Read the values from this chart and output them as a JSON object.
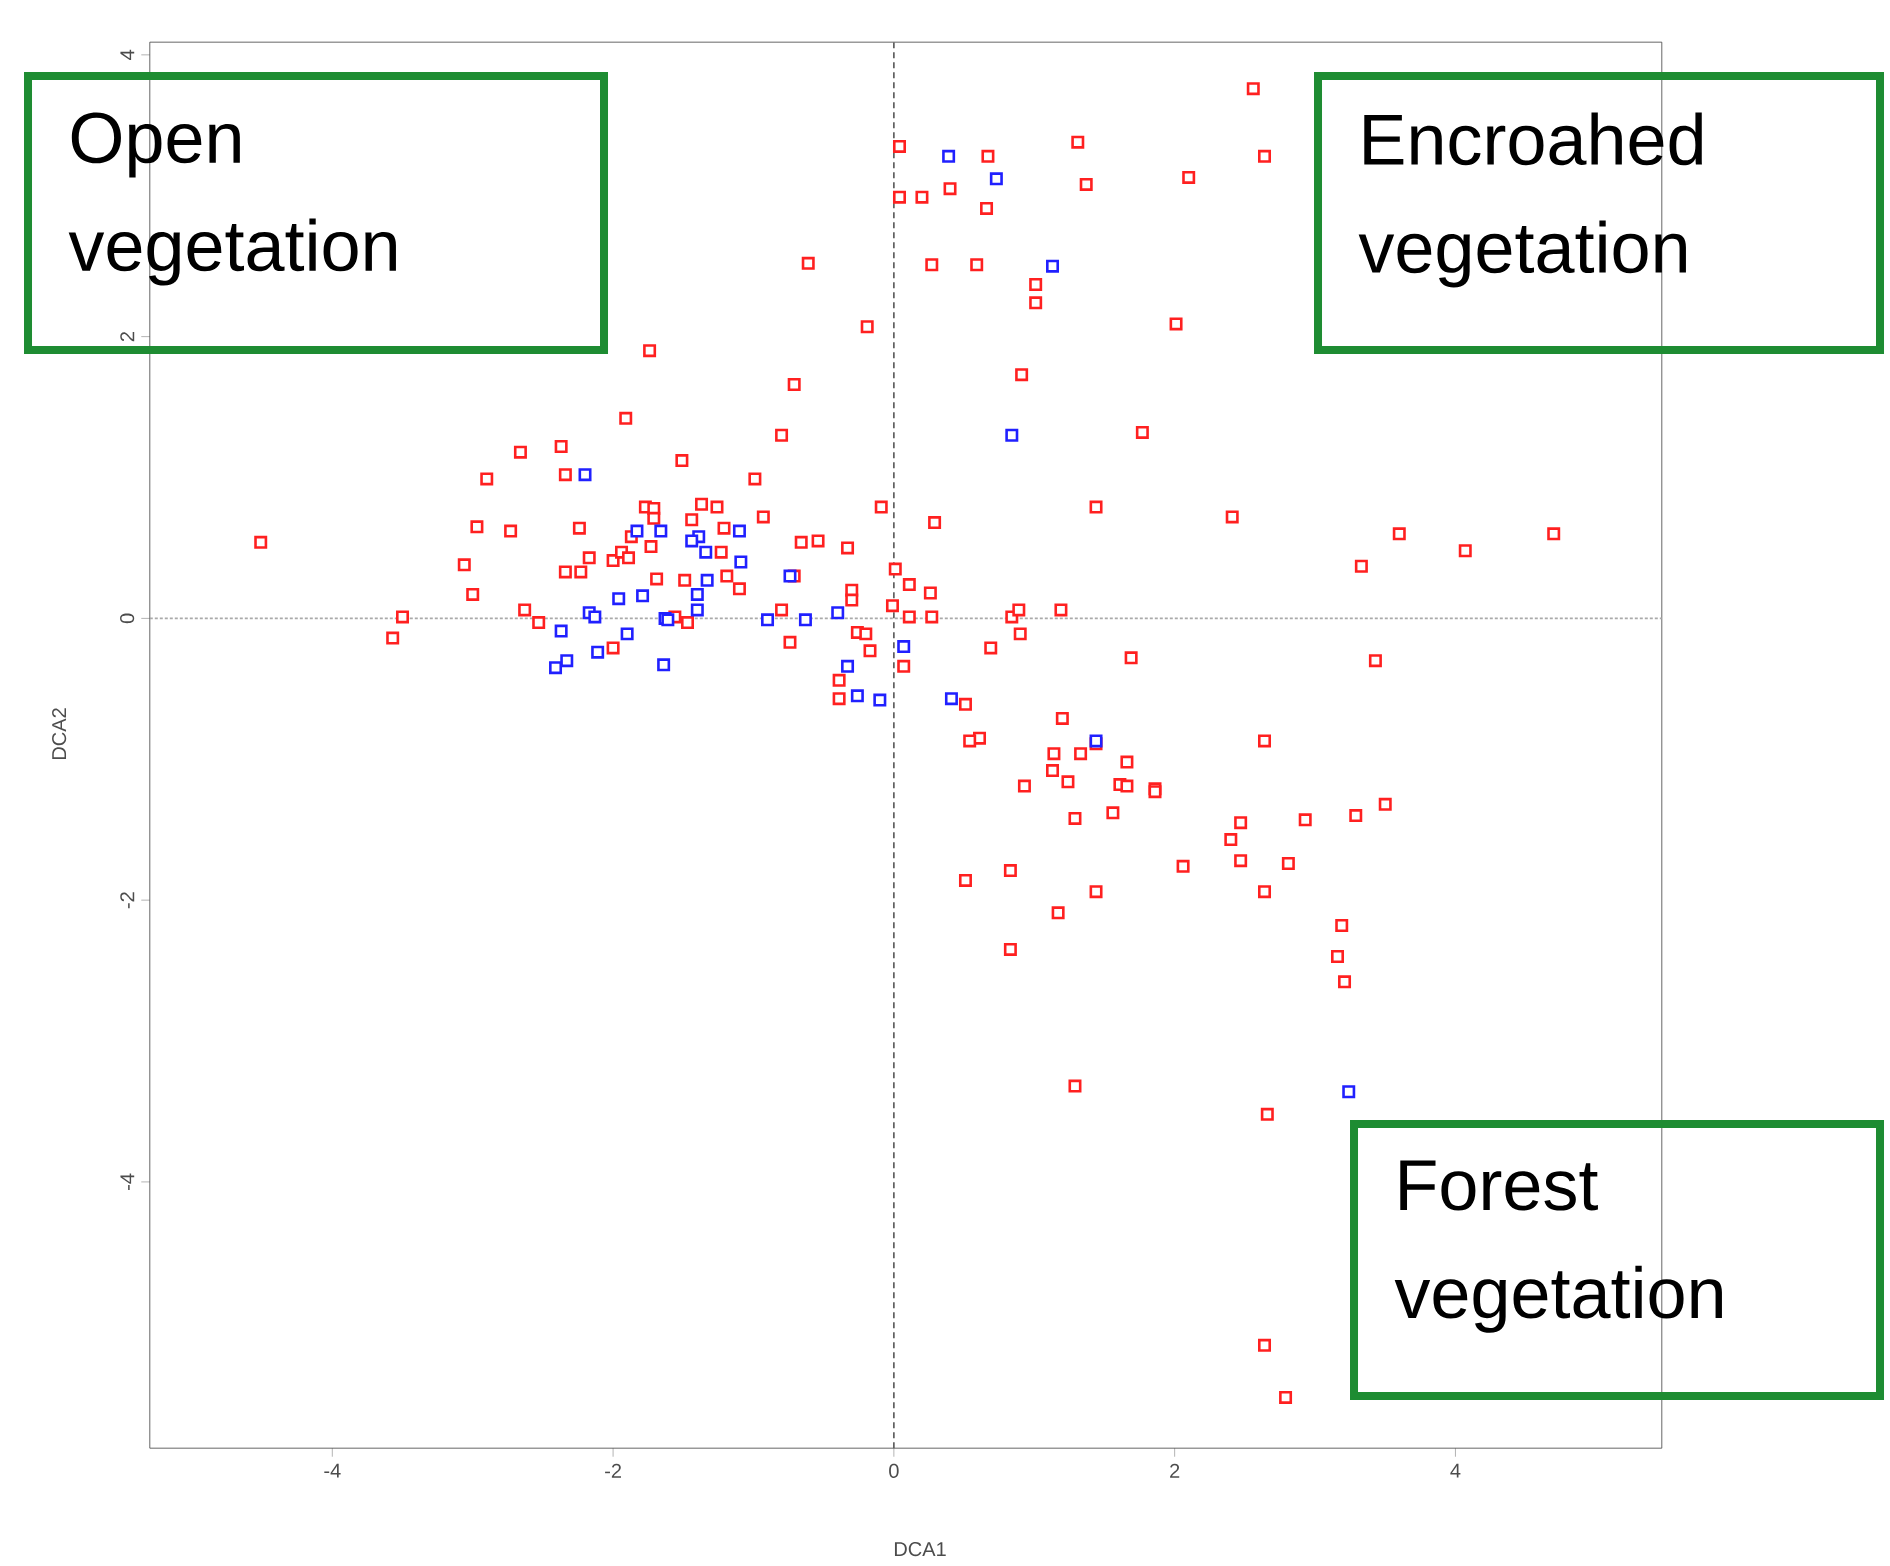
{
  "chart_data": {
    "type": "scatter",
    "xlabel": "DCA1",
    "ylabel": "DCA2",
    "xlim": [
      -5.3,
      5.47
    ],
    "ylim": [
      -5.89,
      4.09
    ],
    "xticks": [
      -4,
      -2,
      0,
      2,
      4
    ],
    "yticks": [
      -4,
      -2,
      0,
      2,
      4
    ],
    "marker": "square",
    "ref_lines": [
      {
        "axis": "x",
        "value": 0,
        "color": "#555555",
        "line_style": "dashed"
      },
      {
        "axis": "y",
        "value": 0,
        "color": "#aaaaaa",
        "line_style": "dotted"
      }
    ],
    "annotations": [
      "Open vegetation",
      "Encroahed vegetation",
      "Forest vegetation"
    ],
    "series": [
      {
        "color": "#ff2020",
        "x": [
          -4.51,
          -3.57,
          -3.5,
          -1.74,
          -1.91,
          -2.66,
          -2.37,
          -2.34,
          -2.9,
          -2.97,
          -2.73,
          -2.24,
          -3.06,
          -3.0,
          -2.34,
          -2.23,
          -2.17,
          -2.0,
          -1.94,
          -1.89,
          -1.87,
          -1.77,
          -1.71,
          -1.71,
          -1.73,
          -1.69,
          -2.63,
          -2.53,
          -2.0,
          0.04,
          0.67,
          1.31,
          1.37,
          0.04,
          0.2,
          0.4,
          0.66,
          -0.61,
          0.27,
          0.59,
          1.01,
          1.01,
          -0.19,
          -0.71,
          0.91,
          -0.8,
          1.77,
          -1.51,
          -0.99,
          1.44,
          -0.09,
          0.29,
          -1.37,
          -1.26,
          -1.44,
          -0.93,
          -1.21,
          -1.23,
          -0.66,
          -0.54,
          -0.33,
          -1.49,
          -1.19,
          -1.1,
          -0.71,
          -0.3,
          -0.3,
          0.01,
          0.11,
          0.26,
          -0.01,
          0.11,
          0.27,
          0.84,
          0.89,
          1.19,
          -0.8,
          -1.56,
          -1.47,
          -0.74,
          -0.26,
          -0.2,
          -0.17,
          0.69,
          0.9,
          1.69,
          0.07,
          -0.39,
          -0.39,
          0.51,
          1.2,
          0.61,
          0.54,
          2.56,
          2.64,
          2.1,
          2.01,
          2.41,
          3.6,
          4.07,
          4.7,
          3.33,
          3.43,
          2.64,
          1.44,
          1.14,
          1.33,
          1.66,
          1.13,
          1.24,
          0.93,
          1.61,
          1.66,
          1.86,
          1.86,
          1.29,
          1.56,
          0.83,
          0.51,
          1.44,
          1.17,
          0.83,
          1.29,
          2.47,
          2.93,
          3.29,
          3.5,
          2.4,
          2.47,
          2.06,
          2.81,
          2.64,
          3.19,
          3.16,
          3.21,
          2.66,
          2.64,
          2.79
        ],
        "values": [
          0.54,
          -0.14,
          0.01,
          1.9,
          1.42,
          1.18,
          1.22,
          1.02,
          0.99,
          0.65,
          0.62,
          0.64,
          0.38,
          0.17,
          0.33,
          0.33,
          0.43,
          0.41,
          0.47,
          0.43,
          0.58,
          0.79,
          0.78,
          0.71,
          0.51,
          0.28,
          0.06,
          -0.03,
          -0.21,
          3.35,
          3.28,
          3.38,
          3.08,
          2.99,
          2.99,
          3.05,
          2.91,
          2.52,
          2.51,
          2.51,
          2.37,
          2.24,
          2.07,
          1.66,
          1.73,
          1.3,
          1.32,
          1.12,
          0.99,
          0.79,
          0.79,
          0.68,
          0.81,
          0.79,
          0.7,
          0.72,
          0.64,
          0.47,
          0.54,
          0.55,
          0.5,
          0.27,
          0.3,
          0.21,
          0.3,
          0.2,
          0.13,
          0.35,
          0.24,
          0.18,
          0.09,
          0.01,
          0.01,
          0.01,
          0.06,
          0.06,
          0.06,
          0.01,
          -0.03,
          -0.17,
          -0.1,
          -0.11,
          -0.23,
          -0.21,
          -0.11,
          -0.28,
          -0.34,
          -0.44,
          -0.57,
          -0.61,
          -0.71,
          -0.85,
          -0.87,
          3.76,
          3.28,
          3.13,
          2.09,
          0.72,
          0.6,
          0.48,
          0.6,
          0.37,
          -0.3,
          -0.87,
          -0.89,
          -0.96,
          -0.96,
          -1.02,
          -1.08,
          -1.16,
          -1.19,
          -1.18,
          -1.19,
          -1.21,
          -1.23,
          -1.42,
          -1.38,
          -1.79,
          -1.86,
          -1.94,
          -2.09,
          -2.35,
          -3.32,
          -1.45,
          -1.43,
          -1.4,
          -1.32,
          -1.57,
          -1.72,
          -1.76,
          -1.74,
          -1.94,
          -2.18,
          -2.4,
          -2.58,
          -3.52,
          -5.16,
          -5.53
        ]
      },
      {
        "color": "#2020ff",
        "x": [
          -2.2,
          -1.83,
          -1.66,
          -1.96,
          -1.79,
          -2.17,
          -2.13,
          -2.37,
          -1.9,
          -2.11,
          -2.33,
          -2.41,
          -1.64,
          -1.63,
          0.39,
          0.73,
          1.13,
          0.84,
          -1.39,
          -1.44,
          -1.1,
          -1.34,
          -1.09,
          -1.33,
          -1.4,
          -1.4,
          -1.61,
          -0.9,
          -0.63,
          -0.4,
          -0.74,
          0.07,
          -0.33,
          -0.26,
          -0.1,
          0.41,
          1.44,
          3.24
        ],
        "values": [
          1.02,
          0.62,
          0.62,
          0.14,
          0.16,
          0.04,
          0.01,
          -0.09,
          -0.11,
          -0.24,
          -0.3,
          -0.35,
          -0.33,
          0.0,
          3.28,
          3.12,
          2.5,
          1.3,
          0.58,
          0.55,
          0.62,
          0.47,
          0.4,
          0.27,
          0.17,
          0.06,
          -0.01,
          -0.01,
          -0.01,
          0.04,
          0.3,
          -0.2,
          -0.34,
          -0.55,
          -0.58,
          -0.57,
          -0.87,
          -3.36
        ]
      }
    ]
  }
}
